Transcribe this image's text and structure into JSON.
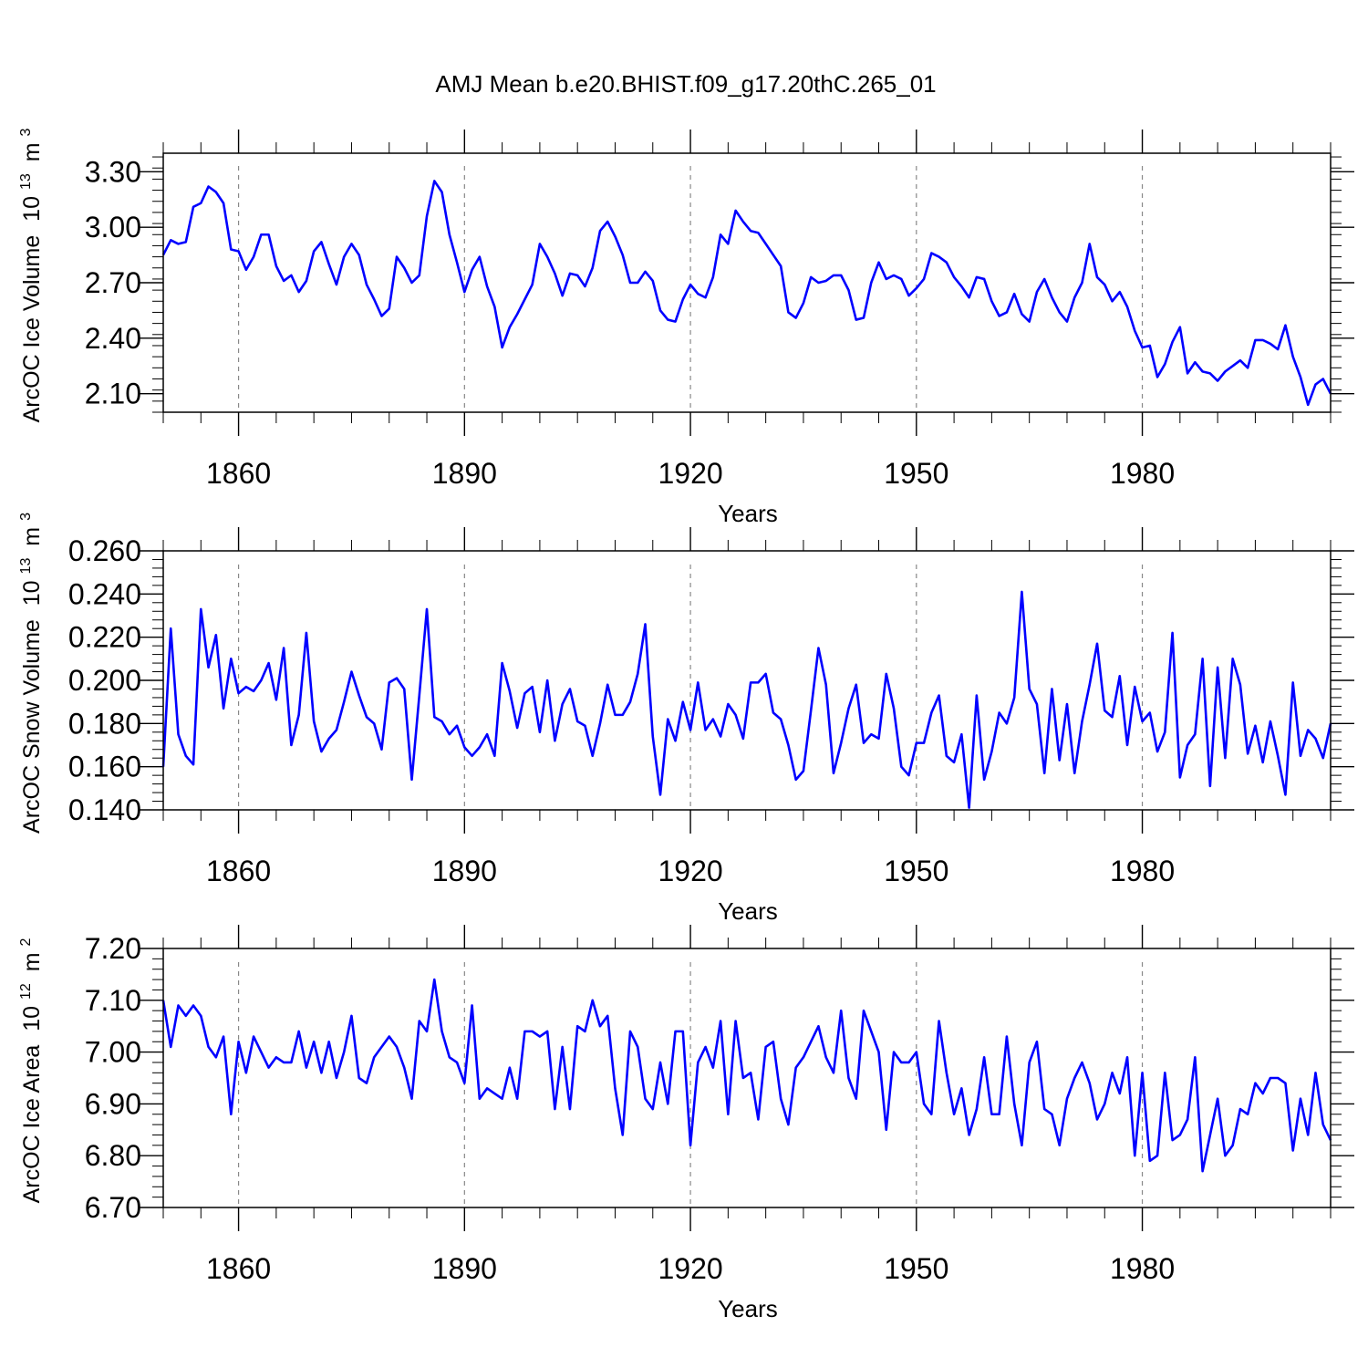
{
  "title": "AMJ Mean b.e20.BHIST.f09_g17.20thC.265_01",
  "line_color": "#0000ff",
  "chart_data": [
    {
      "type": "line",
      "ylabel": "ArcOC Ice Volume",
      "units_prefix": "10",
      "units_exp": "13",
      "units_suffix": "m",
      "units_suffix_exp": "3",
      "xlabel": "Years",
      "xlim": [
        1850,
        2005
      ],
      "ylim": [
        2.0,
        3.4
      ],
      "yticks": [
        "2.10",
        "2.40",
        "2.70",
        "3.00",
        "3.30"
      ],
      "xticks": [
        "1860",
        "1890",
        "1920",
        "1950",
        "1980"
      ],
      "grid": "vertical dashed at major x ticks",
      "x_start": 1850,
      "values": [
        2.85,
        2.93,
        2.91,
        2.92,
        3.11,
        3.13,
        3.22,
        3.19,
        3.13,
        2.88,
        2.87,
        2.77,
        2.84,
        2.96,
        2.96,
        2.79,
        2.71,
        2.74,
        2.65,
        2.71,
        2.87,
        2.92,
        2.8,
        2.69,
        2.84,
        2.91,
        2.85,
        2.69,
        2.61,
        2.52,
        2.56,
        2.84,
        2.78,
        2.7,
        2.74,
        3.06,
        3.25,
        3.19,
        2.96,
        2.81,
        2.65,
        2.77,
        2.84,
        2.68,
        2.57,
        2.35,
        2.46,
        2.53,
        2.61,
        2.69,
        2.91,
        2.84,
        2.75,
        2.63,
        2.75,
        2.74,
        2.68,
        2.78,
        2.98,
        3.03,
        2.95,
        2.85,
        2.7,
        2.7,
        2.76,
        2.71,
        2.55,
        2.5,
        2.49,
        2.61,
        2.69,
        2.64,
        2.62,
        2.73,
        2.96,
        2.91,
        3.09,
        3.03,
        2.98,
        2.97,
        2.91,
        2.85,
        2.79,
        2.54,
        2.51,
        2.59,
        2.73,
        2.7,
        2.71,
        2.74,
        2.74,
        2.66,
        2.5,
        2.51,
        2.7,
        2.81,
        2.72,
        2.74,
        2.72,
        2.63,
        2.67,
        2.72,
        2.86,
        2.84,
        2.81,
        2.73,
        2.68,
        2.62,
        2.73,
        2.72,
        2.6,
        2.52,
        2.54,
        2.64,
        2.53,
        2.49,
        2.65,
        2.72,
        2.62,
        2.54,
        2.49,
        2.62,
        2.7,
        2.91,
        2.73,
        2.69,
        2.6,
        2.65,
        2.57,
        2.44,
        2.35,
        2.36,
        2.19,
        2.26,
        2.38,
        2.46,
        2.21,
        2.27,
        2.22,
        2.21,
        2.17,
        2.22,
        2.25,
        2.28,
        2.24,
        2.39,
        2.39,
        2.37,
        2.34,
        2.47,
        2.3,
        2.19,
        2.04,
        2.15,
        2.18,
        2.1
      ]
    },
    {
      "type": "line",
      "ylabel": "ArcOC Snow Volume",
      "units_prefix": "10",
      "units_exp": "13",
      "units_suffix": "m",
      "units_suffix_exp": "3",
      "xlabel": "Years",
      "xlim": [
        1850,
        2005
      ],
      "ylim": [
        0.14,
        0.26
      ],
      "yticks": [
        "0.140",
        "0.160",
        "0.180",
        "0.200",
        "0.220",
        "0.240",
        "0.260"
      ],
      "xticks": [
        "1860",
        "1890",
        "1920",
        "1950",
        "1980"
      ],
      "grid": "vertical dashed at major x ticks",
      "x_start": 1850,
      "values": [
        0.16,
        0.224,
        0.175,
        0.165,
        0.161,
        0.233,
        0.206,
        0.221,
        0.187,
        0.21,
        0.194,
        0.197,
        0.195,
        0.2,
        0.208,
        0.191,
        0.215,
        0.17,
        0.184,
        0.222,
        0.181,
        0.167,
        0.173,
        0.177,
        0.19,
        0.204,
        0.193,
        0.183,
        0.18,
        0.168,
        0.199,
        0.201,
        0.196,
        0.154,
        0.193,
        0.233,
        0.183,
        0.181,
        0.175,
        0.179,
        0.169,
        0.165,
        0.169,
        0.175,
        0.165,
        0.208,
        0.195,
        0.178,
        0.194,
        0.197,
        0.176,
        0.2,
        0.172,
        0.189,
        0.196,
        0.181,
        0.179,
        0.165,
        0.18,
        0.198,
        0.184,
        0.184,
        0.19,
        0.203,
        0.226,
        0.174,
        0.147,
        0.182,
        0.172,
        0.19,
        0.177,
        0.199,
        0.177,
        0.182,
        0.174,
        0.189,
        0.184,
        0.173,
        0.199,
        0.199,
        0.203,
        0.185,
        0.182,
        0.17,
        0.154,
        0.158,
        0.186,
        0.215,
        0.198,
        0.157,
        0.171,
        0.187,
        0.198,
        0.171,
        0.175,
        0.173,
        0.203,
        0.187,
        0.16,
        0.156,
        0.171,
        0.171,
        0.185,
        0.193,
        0.165,
        0.162,
        0.175,
        0.141,
        0.193,
        0.154,
        0.167,
        0.185,
        0.18,
        0.192,
        0.241,
        0.196,
        0.189,
        0.157,
        0.196,
        0.163,
        0.189,
        0.157,
        0.181,
        0.198,
        0.217,
        0.186,
        0.183,
        0.202,
        0.17,
        0.197,
        0.181,
        0.185,
        0.167,
        0.176,
        0.222,
        0.155,
        0.17,
        0.175,
        0.21,
        0.151,
        0.206,
        0.164,
        0.21,
        0.198,
        0.166,
        0.179,
        0.162,
        0.181,
        0.165,
        0.147,
        0.199,
        0.165,
        0.177,
        0.173,
        0.164,
        0.18
      ]
    },
    {
      "type": "line",
      "ylabel": "ArcOC Ice Area",
      "units_prefix": "10",
      "units_exp": "12",
      "units_suffix": "m",
      "units_suffix_exp": "2",
      "xlabel": "Years",
      "xlim": [
        1850,
        2005
      ],
      "ylim": [
        6.7,
        7.2
      ],
      "yticks": [
        "6.70",
        "6.80",
        "6.90",
        "7.00",
        "7.10",
        "7.20"
      ],
      "xticks": [
        "1860",
        "1890",
        "1920",
        "1950",
        "1980"
      ],
      "grid": "vertical dashed at major x ticks",
      "x_start": 1850,
      "values": [
        7.1,
        7.01,
        7.09,
        7.07,
        7.09,
        7.07,
        7.01,
        6.99,
        7.03,
        6.88,
        7.02,
        6.96,
        7.03,
        7.0,
        6.97,
        6.99,
        6.98,
        6.98,
        7.04,
        6.97,
        7.02,
        6.96,
        7.02,
        6.95,
        7.0,
        7.07,
        6.95,
        6.94,
        6.99,
        7.01,
        7.03,
        7.01,
        6.97,
        6.91,
        7.06,
        7.04,
        7.14,
        7.04,
        6.99,
        6.98,
        6.94,
        7.09,
        6.91,
        6.93,
        6.92,
        6.91,
        6.97,
        6.91,
        7.04,
        7.04,
        7.03,
        7.04,
        6.89,
        7.01,
        6.89,
        7.05,
        7.04,
        7.1,
        7.05,
        7.07,
        6.93,
        6.84,
        7.04,
        7.01,
        6.91,
        6.89,
        6.98,
        6.9,
        7.04,
        7.04,
        6.82,
        6.98,
        7.01,
        6.97,
        7.06,
        6.88,
        7.06,
        6.95,
        6.96,
        6.87,
        7.01,
        7.02,
        6.91,
        6.86,
        6.97,
        6.99,
        7.02,
        7.05,
        6.99,
        6.96,
        7.08,
        6.95,
        6.91,
        7.08,
        7.04,
        7.0,
        6.85,
        7.0,
        6.98,
        6.98,
        7.0,
        6.9,
        6.88,
        7.06,
        6.96,
        6.88,
        6.93,
        6.84,
        6.89,
        6.99,
        6.88,
        6.88,
        7.03,
        6.9,
        6.82,
        6.98,
        7.02,
        6.89,
        6.88,
        6.82,
        6.91,
        6.95,
        6.98,
        6.94,
        6.87,
        6.9,
        6.96,
        6.92,
        6.99,
        6.8,
        6.96,
        6.79,
        6.8,
        6.96,
        6.83,
        6.84,
        6.87,
        6.99,
        6.77,
        6.84,
        6.91,
        6.8,
        6.82,
        6.89,
        6.88,
        6.94,
        6.92,
        6.95,
        6.95,
        6.94,
        6.81,
        6.91,
        6.84,
        6.96,
        6.86,
        6.83
      ]
    }
  ]
}
